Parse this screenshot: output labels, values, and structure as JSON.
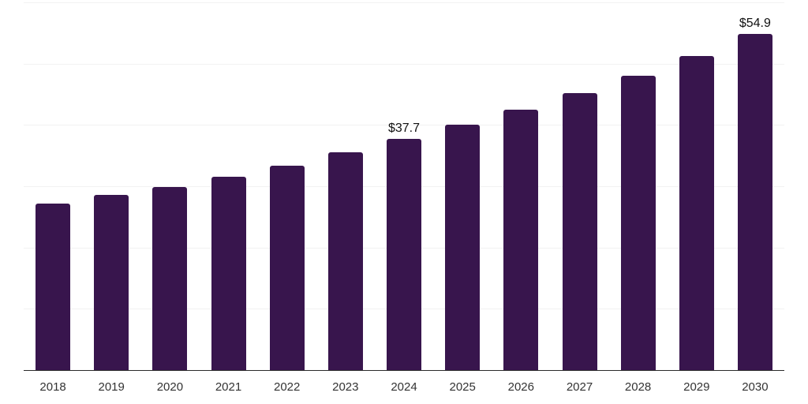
{
  "chart_data": {
    "type": "bar",
    "categories": [
      "2018",
      "2019",
      "2020",
      "2021",
      "2022",
      "2023",
      "2024",
      "2025",
      "2026",
      "2027",
      "2028",
      "2029",
      "2030"
    ],
    "values": [
      27.2,
      28.6,
      29.9,
      31.6,
      33.4,
      35.5,
      37.7,
      40.0,
      42.5,
      45.2,
      48.0,
      51.3,
      54.9
    ],
    "bar_labels": [
      {
        "category": "2024",
        "text": "$37.7"
      },
      {
        "category": "2030",
        "text": "$54.9"
      }
    ],
    "ylim": [
      0,
      60
    ],
    "gridline_step": 10,
    "grid": "horizontal",
    "legend": "none",
    "y_tick_labels_visible": false,
    "colors": {
      "background": "#ffffff",
      "bar": "#38154D",
      "gridline": "#f2f2f2",
      "axis_line": "#2b2b2b",
      "category_label": "#333333",
      "value_label": "#111111"
    }
  }
}
